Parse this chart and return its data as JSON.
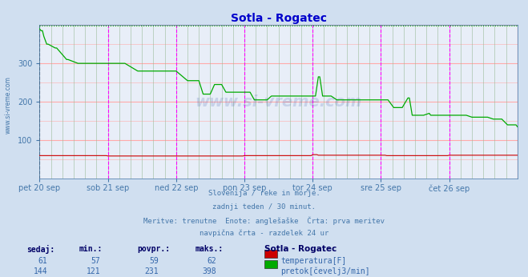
{
  "title": "Sotla - Rogatec",
  "title_color": "#0000cc",
  "bg_color": "#d0dff0",
  "plot_bg_color": "#e8eef8",
  "grid_color_pink": "#ffaaaa",
  "grid_color_green": "#99bb99",
  "xlabel_color": "#4477aa",
  "ylabel_color": "#4477aa",
  "tick_color": "#4477aa",
  "y_min": 0,
  "y_max": 400,
  "y_ticks": [
    100,
    200,
    300
  ],
  "x_day_labels": [
    "pet 20 sep",
    "sob 21 sep",
    "ned 22 sep",
    "pon 23 sep",
    "tor 24 sep",
    "sre 25 sep",
    "čet 26 sep"
  ],
  "x_day_positions": [
    0,
    48,
    96,
    144,
    192,
    240,
    288
  ],
  "total_points": 337,
  "temp_color": "#cc0000",
  "flow_color": "#00aa00",
  "vline_color_black": "#555555",
  "vline_color_magenta": "#ff00ff",
  "watermark": "www.si-vreme.com",
  "subtitle_lines": [
    "Slovenija / reke in morje.",
    "zadnji teden / 30 minut.",
    "Meritve: trenutne  Enote: anglešaške  Črta: prva meritev",
    "navpična črta - razdelek 24 ur"
  ],
  "legend_title": "Sotla - Rogatec",
  "legend_items": [
    {
      "label": "temperatura[F]",
      "color": "#cc0000"
    },
    {
      "label": "pretok[čevelj3/min]",
      "color": "#00aa00"
    }
  ],
  "stats_headers": [
    "sedaj:",
    "min.:",
    "povpr.:",
    "maks.:"
  ],
  "stats_temp": [
    61,
    57,
    59,
    62
  ],
  "stats_flow": [
    144,
    121,
    231,
    398
  ],
  "text_color_blue": "#3366aa",
  "text_bold_color": "#000066",
  "side_label": "www.si-vreme.com"
}
